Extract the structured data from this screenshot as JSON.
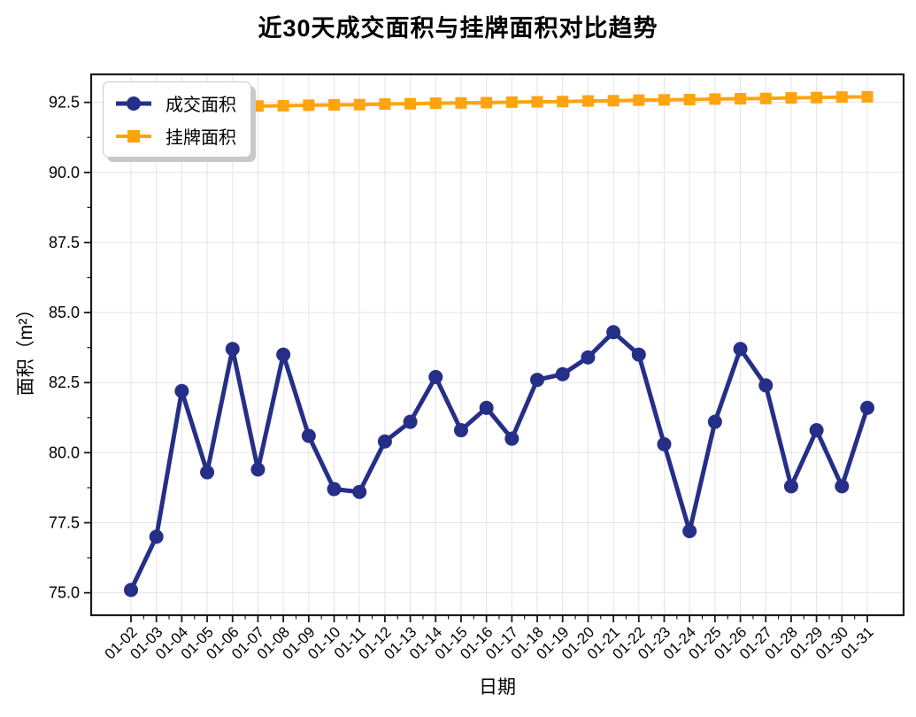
{
  "chart_data": {
    "type": "line",
    "title": "近30天成交面积与挂牌面积对比趋势",
    "xlabel": "日期",
    "ylabel": "面积（m²）",
    "categories": [
      "01-02",
      "01-03",
      "01-04",
      "01-05",
      "01-06",
      "01-07",
      "01-08",
      "01-09",
      "01-10",
      "01-11",
      "01-12",
      "01-13",
      "01-14",
      "01-15",
      "01-16",
      "01-17",
      "01-18",
      "01-19",
      "01-20",
      "01-21",
      "01-22",
      "01-23",
      "01-24",
      "01-25",
      "01-26",
      "01-27",
      "01-28",
      "01-29",
      "01-30",
      "01-31"
    ],
    "series": [
      {
        "name": "成交面积",
        "color": "#262F87",
        "marker": "circle",
        "values": [
          75.1,
          77.0,
          82.2,
          79.3,
          83.7,
          79.4,
          83.5,
          80.6,
          78.7,
          78.6,
          80.4,
          81.1,
          82.7,
          80.8,
          81.6,
          80.5,
          82.6,
          82.8,
          83.4,
          84.3,
          83.5,
          80.3,
          77.2,
          81.1,
          83.7,
          82.4,
          78.8,
          80.8,
          78.8,
          81.6
        ]
      },
      {
        "name": "挂牌面积",
        "color": "#FFA40F",
        "marker": "square",
        "values": [
          92.3,
          92.31,
          92.33,
          92.34,
          92.36,
          92.37,
          92.38,
          92.4,
          92.41,
          92.42,
          92.44,
          92.45,
          92.47,
          92.48,
          92.49,
          92.51,
          92.52,
          92.53,
          92.55,
          92.56,
          92.58,
          92.59,
          92.6,
          92.62,
          92.63,
          92.64,
          92.66,
          92.67,
          92.69,
          92.7
        ]
      }
    ],
    "yticks": [
      75.0,
      77.5,
      80.0,
      82.5,
      85.0,
      87.5,
      90.0,
      92.5
    ],
    "ytick_labels": [
      "75.0",
      "77.5",
      "80.0",
      "82.5",
      "85.0",
      "87.5",
      "90.0",
      "92.5"
    ],
    "ylim": [
      74.2,
      93.5
    ],
    "grid": true,
    "grid_color": "#e4e4e4",
    "axis_color": "#1a1a1a",
    "legend_position": "upper-left"
  }
}
